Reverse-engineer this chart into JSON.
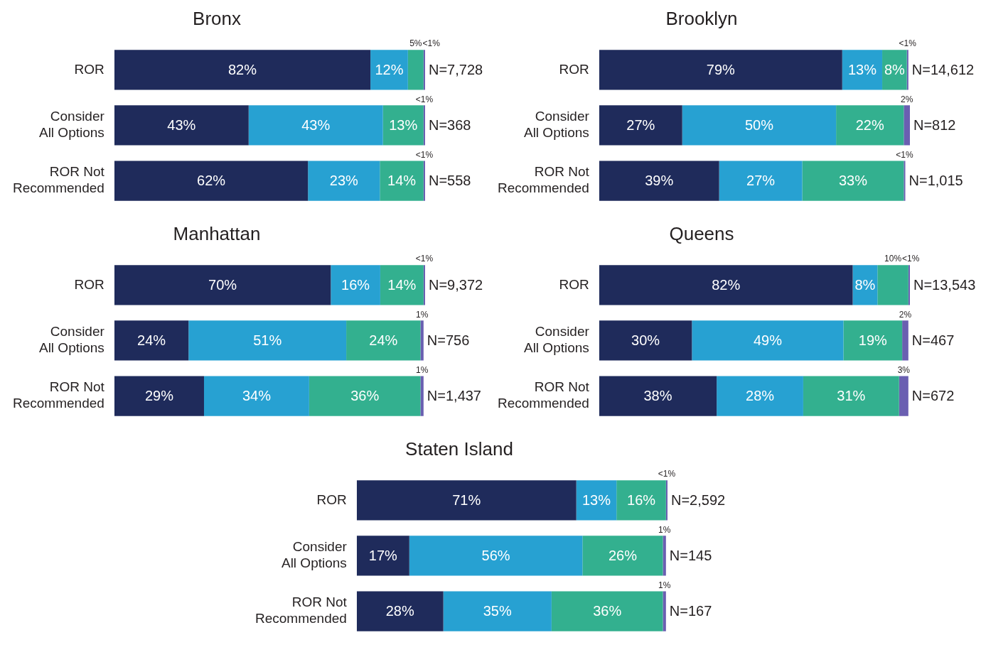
{
  "chart_data": [
    {
      "type": "bar",
      "orientation": "horizontal",
      "stacked": true,
      "title": "Bronx",
      "categories": [
        "ROR",
        "Consider All Options",
        "ROR Not Recommended"
      ],
      "legend": false,
      "series": [
        {
          "color": "#1f2b5b",
          "values": [
            82,
            43,
            62
          ],
          "value_labels": [
            "82%",
            "43%",
            "62%"
          ]
        },
        {
          "color": "#27a1d2",
          "values": [
            12,
            43,
            23
          ],
          "value_labels": [
            "12%",
            "43%",
            "23%"
          ]
        },
        {
          "color": "#33b08f",
          "values": [
            5,
            13,
            14
          ],
          "value_labels": [
            "5%",
            "13%",
            "14%"
          ]
        },
        {
          "color": "#6a5fb1",
          "values": [
            0.5,
            0.5,
            0.5
          ],
          "value_labels": [
            "<1%",
            "<1%",
            "<1%"
          ]
        }
      ],
      "annotations": [
        "N=7,728",
        "N=368",
        "N=558"
      ]
    },
    {
      "type": "bar",
      "orientation": "horizontal",
      "stacked": true,
      "title": "Brooklyn",
      "categories": [
        "ROR",
        "Consider All Options",
        "ROR Not Recommended"
      ],
      "legend": false,
      "series": [
        {
          "color": "#1f2b5b",
          "values": [
            79,
            27,
            39
          ],
          "value_labels": [
            "79%",
            "27%",
            "39%"
          ]
        },
        {
          "color": "#27a1d2",
          "values": [
            13,
            50,
            27
          ],
          "value_labels": [
            "13%",
            "50%",
            "27%"
          ]
        },
        {
          "color": "#33b08f",
          "values": [
            8,
            22,
            33
          ],
          "value_labels": [
            "8%",
            "22%",
            "33%"
          ]
        },
        {
          "color": "#6a5fb1",
          "values": [
            0.5,
            2,
            0.5
          ],
          "value_labels": [
            "<1%",
            "2%",
            "<1%"
          ]
        }
      ],
      "annotations": [
        "N=14,612",
        "N=812",
        "N=1,015"
      ]
    },
    {
      "type": "bar",
      "orientation": "horizontal",
      "stacked": true,
      "title": "Manhattan",
      "categories": [
        "ROR",
        "Consider All Options",
        "ROR Not Recommended"
      ],
      "legend": false,
      "series": [
        {
          "color": "#1f2b5b",
          "values": [
            70,
            24,
            29
          ],
          "value_labels": [
            "70%",
            "24%",
            "29%"
          ]
        },
        {
          "color": "#27a1d2",
          "values": [
            16,
            51,
            34
          ],
          "value_labels": [
            "16%",
            "51%",
            "34%"
          ]
        },
        {
          "color": "#33b08f",
          "values": [
            14,
            24,
            36
          ],
          "value_labels": [
            "14%",
            "24%",
            "36%"
          ]
        },
        {
          "color": "#6a5fb1",
          "values": [
            0.5,
            1,
            1
          ],
          "value_labels": [
            "<1%",
            "1%",
            "1%"
          ]
        }
      ],
      "annotations": [
        "N=9,372",
        "N=756",
        "N=1,437"
      ]
    },
    {
      "type": "bar",
      "orientation": "horizontal",
      "stacked": true,
      "title": "Queens",
      "categories": [
        "ROR",
        "Consider All Options",
        "ROR Not Recommended"
      ],
      "legend": false,
      "series": [
        {
          "color": "#1f2b5b",
          "values": [
            82,
            30,
            38
          ],
          "value_labels": [
            "82%",
            "30%",
            "38%"
          ]
        },
        {
          "color": "#27a1d2",
          "values": [
            8,
            49,
            28
          ],
          "value_labels": [
            "8%",
            "49%",
            "28%"
          ]
        },
        {
          "color": "#33b08f",
          "values": [
            10,
            19,
            31
          ],
          "value_labels": [
            "10%",
            "19%",
            "31%"
          ]
        },
        {
          "color": "#6a5fb1",
          "values": [
            0.5,
            2,
            3
          ],
          "value_labels": [
            "<1%",
            "2%",
            "3%"
          ]
        }
      ],
      "annotations": [
        "N=13,543",
        "N=467",
        "N=672"
      ]
    },
    {
      "type": "bar",
      "orientation": "horizontal",
      "stacked": true,
      "title": "Staten Island",
      "categories": [
        "ROR",
        "Consider All Options",
        "ROR Not Recommended"
      ],
      "legend": false,
      "series": [
        {
          "color": "#1f2b5b",
          "values": [
            71,
            17,
            28
          ],
          "value_labels": [
            "71%",
            "17%",
            "28%"
          ]
        },
        {
          "color": "#27a1d2",
          "values": [
            13,
            56,
            35
          ],
          "value_labels": [
            "13%",
            "56%",
            "35%"
          ]
        },
        {
          "color": "#33b08f",
          "values": [
            16,
            26,
            36
          ],
          "value_labels": [
            "16%",
            "26%",
            "36%"
          ]
        },
        {
          "color": "#6a5fb1",
          "values": [
            0.5,
            1,
            1
          ],
          "value_labels": [
            "<1%",
            "1%",
            "1%"
          ]
        }
      ],
      "annotations": [
        "N=2,592",
        "N=145",
        "N=167"
      ]
    }
  ]
}
